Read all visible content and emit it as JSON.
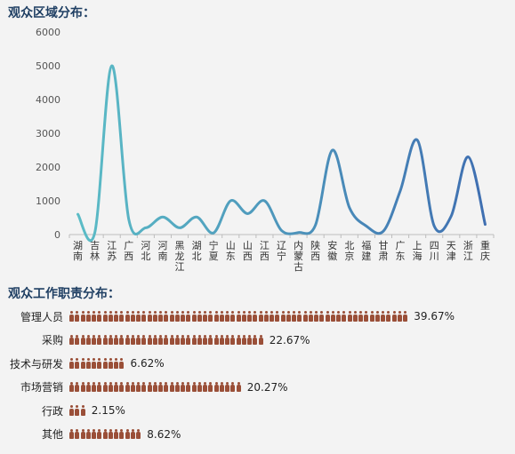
{
  "sections": {
    "region_title": "观众区域分布：",
    "role_title": "观众工作职责分布："
  },
  "colors": {
    "title": "#1f3f63",
    "line_start": "#5bbcc6",
    "line_end": "#3f6fb1",
    "people": "#9a4f38",
    "grid_text": "#555555"
  },
  "chart_data": [
    {
      "type": "line",
      "title": "",
      "xlabel": "",
      "ylabel": "",
      "ylim": [
        0,
        6000
      ],
      "yticks": [
        0,
        1000,
        2000,
        3000,
        4000,
        5000,
        6000
      ],
      "grid": false,
      "smooth": true,
      "categories": [
        "湖南",
        "吉林",
        "江苏",
        "广西",
        "河北",
        "河南",
        "黑龙江",
        "湖北",
        "宁夏",
        "山东",
        "山西",
        "江西",
        "辽宁",
        "内蒙古",
        "陕西",
        "安徽",
        "北京",
        "福建",
        "甘肃",
        "广东",
        "上海",
        "四川",
        "天津",
        "浙江",
        "重庆"
      ],
      "series": [
        {
          "values": [
            600,
            60,
            5000,
            450,
            200,
            520,
            200,
            520,
            50,
            1000,
            620,
            1000,
            120,
            60,
            280,
            2500,
            800,
            250,
            100,
            1300,
            2800,
            250,
            550,
            2300,
            300
          ]
        }
      ]
    },
    {
      "type": "bar",
      "categories": [
        "管理人员",
        "采购",
        "技术与研发",
        "市场营销",
        "行政",
        "其他"
      ],
      "values": [
        39.67,
        22.67,
        6.62,
        20.27,
        2.15,
        8.62
      ],
      "value_labels": [
        "39.67%",
        "22.67%",
        "6.62%",
        "20.27%",
        "2.15%",
        "8.62%"
      ],
      "icon": "person-icon"
    }
  ]
}
